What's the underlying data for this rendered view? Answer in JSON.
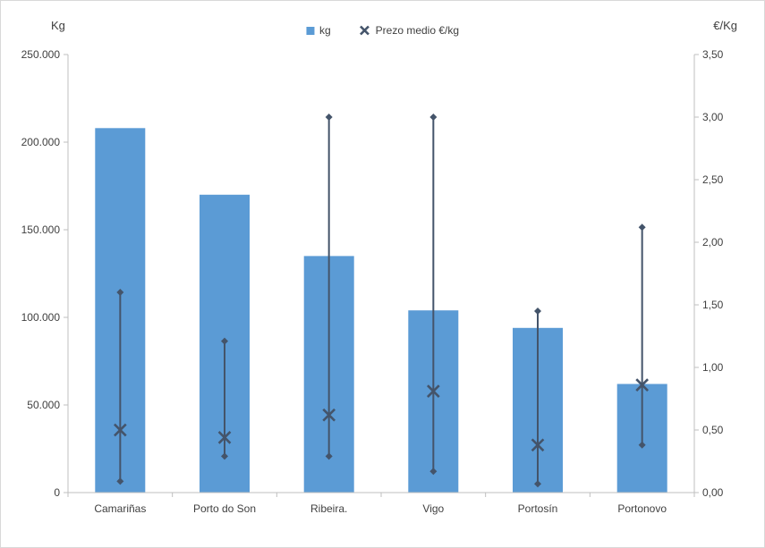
{
  "chart_data": {
    "type": "bar",
    "title": "",
    "categories": [
      "Camariñas",
      "Porto do Son",
      "Ribeira.",
      "Vigo",
      "Portosín",
      "Portonovo"
    ],
    "series": [
      {
        "name": "kg",
        "type": "bar",
        "axis": "left",
        "color": "#5B9BD5",
        "values": [
          208000,
          170000,
          135000,
          104000,
          94000,
          62000
        ]
      },
      {
        "name": "Prezo medio €/kg",
        "type": "range-with-average-marker",
        "axis": "right",
        "color": "#44546A",
        "avg": [
          0.5,
          0.44,
          0.62,
          0.81,
          0.38,
          0.86
        ],
        "min": [
          0.09,
          0.29,
          0.29,
          0.17,
          0.07,
          0.38
        ],
        "max": [
          1.6,
          1.21,
          3.0,
          3.0,
          1.45,
          2.12
        ]
      }
    ],
    "left_axis": {
      "title": "Kg",
      "min": 0,
      "max": 250000,
      "ticks": [
        "0",
        "50.000",
        "100.000",
        "150.000",
        "200.000",
        "250.000"
      ],
      "tick_values": [
        0,
        50000,
        100000,
        150000,
        200000,
        250000
      ]
    },
    "right_axis": {
      "title": "€/Kg",
      "min": 0,
      "max": 3.5,
      "ticks": [
        "0,00",
        "0,50",
        "1,00",
        "1,50",
        "2,00",
        "2,50",
        "3,00",
        "3,50"
      ],
      "tick_values": [
        0,
        0.5,
        1,
        1.5,
        2,
        2.5,
        3,
        3.5
      ]
    },
    "grid": false,
    "legend_position": "top",
    "axis_line_color": "#BFBFBF"
  }
}
